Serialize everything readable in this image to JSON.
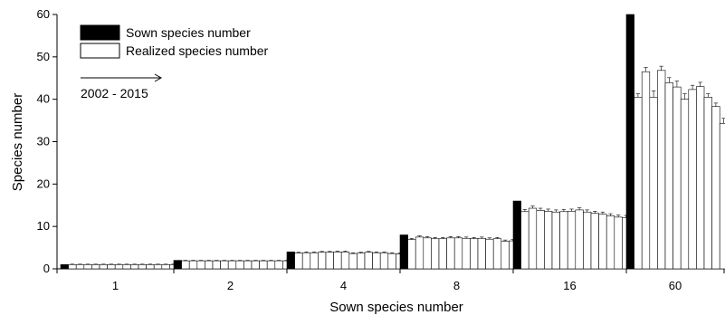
{
  "chart_data": {
    "type": "bar",
    "xlabel": "Sown species number",
    "ylabel": "Species number",
    "ylim": [
      0,
      60
    ],
    "yticks": [
      0,
      10,
      20,
      30,
      40,
      50,
      60
    ],
    "categories": [
      "1",
      "2",
      "4",
      "8",
      "16",
      "60"
    ],
    "annotation": "2002 - 2015",
    "grid": false,
    "legend_position": "top-left",
    "series": [
      {
        "name": "Sown species number",
        "color": "#000000",
        "values": [
          1,
          2,
          4,
          8,
          16,
          60
        ]
      },
      {
        "name": "Realized species number",
        "color": "#ffffff",
        "values": [
          [
            1,
            1,
            1,
            1,
            1,
            1,
            1,
            1,
            1,
            1,
            1,
            1,
            1,
            1
          ],
          [
            1.9,
            1.9,
            1.9,
            1.9,
            1.9,
            1.9,
            1.9,
            1.9,
            1.9,
            1.9,
            1.9,
            1.9,
            1.9,
            1.9
          ],
          [
            3.7,
            3.8,
            3.8,
            3.9,
            3.9,
            4.0,
            4.0,
            3.6,
            3.7,
            3.9,
            3.8,
            3.8,
            3.6,
            3.5
          ],
          [
            6.9,
            7.5,
            7.3,
            7.1,
            7.1,
            7.3,
            7.3,
            7.2,
            7.1,
            7.2,
            7.0,
            7.1,
            6.5,
            6.6
          ],
          [
            13.5,
            14.3,
            13.8,
            13.6,
            13.4,
            13.5,
            13.6,
            13.9,
            13.4,
            13.1,
            12.9,
            12.5,
            12.2,
            12.1
          ],
          [
            40.5,
            46.5,
            40.5,
            46.8,
            43.9,
            42.9,
            40.0,
            42.3,
            43.0,
            40.5,
            38.3,
            34.3,
            33.9,
            31.3
          ]
        ]
      }
    ],
    "errors": [
      [
        0.1,
        0.1,
        0.1,
        0.1,
        0.1,
        0.1,
        0.1,
        0.1,
        0.1,
        0.1,
        0.1,
        0.1,
        0.1,
        0.1
      ],
      [
        0.1,
        0.1,
        0.1,
        0.1,
        0.1,
        0.1,
        0.1,
        0.1,
        0.1,
        0.1,
        0.1,
        0.1,
        0.1,
        0.1
      ],
      [
        0.2,
        0.2,
        0.2,
        0.2,
        0.2,
        0.2,
        0.2,
        0.2,
        0.2,
        0.2,
        0.2,
        0.2,
        0.2,
        0.2
      ],
      [
        0.3,
        0.3,
        0.3,
        0.3,
        0.3,
        0.3,
        0.3,
        0.3,
        0.3,
        0.3,
        0.3,
        0.3,
        0.3,
        0.3
      ],
      [
        0.5,
        0.5,
        0.5,
        0.5,
        0.5,
        0.5,
        0.5,
        0.5,
        0.5,
        0.5,
        0.5,
        0.5,
        0.5,
        0.5
      ],
      [
        0.8,
        1.0,
        1.5,
        1.0,
        1.2,
        1.4,
        1.3,
        1.0,
        1.0,
        0.8,
        0.8,
        1.2,
        0.8,
        0.9
      ]
    ]
  }
}
